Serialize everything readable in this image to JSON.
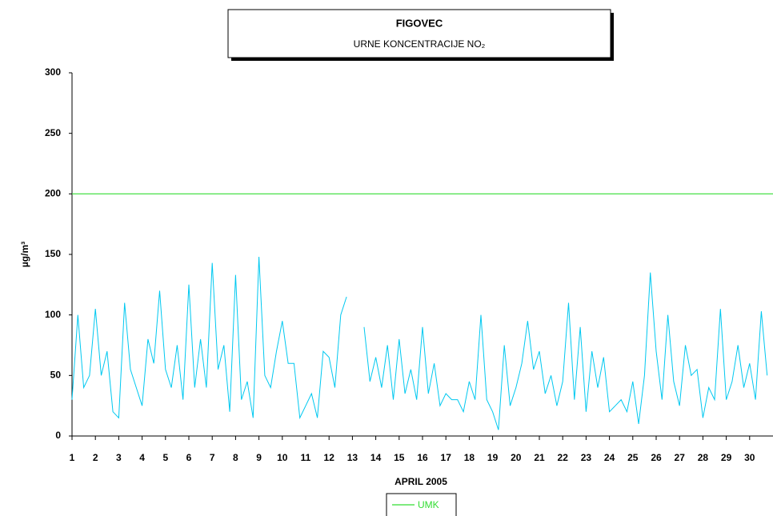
{
  "chart_data": {
    "type": "line",
    "title": "FIGOVEC",
    "subtitle": "URNE KONCENTRACIJE NO₂",
    "y_label": "µg/m³",
    "x_label": "APRIL 2005",
    "xlim": [
      1,
      31
    ],
    "xticks": [
      1,
      2,
      3,
      4,
      5,
      6,
      7,
      8,
      9,
      10,
      11,
      12,
      13,
      14,
      15,
      16,
      17,
      18,
      19,
      20,
      21,
      22,
      23,
      24,
      25,
      26,
      27,
      28,
      29,
      30
    ],
    "ylim": [
      0,
      300
    ],
    "yticks": [
      0,
      50,
      100,
      150,
      200,
      250,
      300
    ],
    "series": [
      {
        "color": "#00c8f0",
        "x": [
          1,
          1.25,
          1.5,
          1.75,
          2,
          2.25,
          2.5,
          2.75,
          3,
          3.25,
          3.5,
          3.75,
          4,
          4.25,
          4.5,
          4.75,
          5,
          5.25,
          5.5,
          5.75,
          6,
          6.25,
          6.5,
          6.75,
          7,
          7.25,
          7.5,
          7.75,
          8,
          8.25,
          8.5,
          8.75,
          9,
          9.25,
          9.5,
          9.75,
          10,
          10.25,
          10.5,
          10.75,
          11,
          11.25,
          11.5,
          11.75,
          12,
          12.25,
          12.5,
          12.75,
          13,
          13.25,
          13.5,
          13.75,
          14,
          14.25,
          14.5,
          14.75,
          15,
          15.25,
          15.5,
          15.75,
          16,
          16.25,
          16.5,
          16.75,
          17,
          17.25,
          17.5,
          17.75,
          18,
          18.25,
          18.5,
          18.75,
          19,
          19.25,
          19.5,
          19.75,
          20,
          20.25,
          20.5,
          20.75,
          21,
          21.25,
          21.5,
          21.75,
          22,
          22.25,
          22.5,
          22.75,
          23,
          23.25,
          23.5,
          23.75,
          24,
          24.25,
          24.5,
          24.75,
          25,
          25.25,
          25.5,
          25.75,
          26,
          26.25,
          26.5,
          26.75,
          27,
          27.25,
          27.5,
          27.75,
          28,
          28.25,
          28.5,
          28.75,
          29,
          29.25,
          29.5,
          29.75,
          30,
          30.25,
          30.5,
          30.75
        ],
        "values": [
          30,
          100,
          40,
          50,
          105,
          50,
          70,
          20,
          15,
          110,
          55,
          40,
          25,
          80,
          60,
          120,
          55,
          40,
          75,
          30,
          125,
          40,
          80,
          40,
          143,
          55,
          75,
          20,
          133,
          30,
          45,
          15,
          148,
          50,
          40,
          70,
          95,
          60,
          60,
          15,
          25,
          35,
          15,
          70,
          65,
          40,
          100,
          115,
          null,
          null,
          90,
          45,
          65,
          40,
          75,
          30,
          80,
          35,
          55,
          30,
          90,
          35,
          60,
          25,
          35,
          30,
          30,
          20,
          45,
          30,
          100,
          30,
          20,
          5,
          75,
          25,
          40,
          60,
          95,
          55,
          70,
          35,
          50,
          25,
          45,
          110,
          30,
          90,
          20,
          70,
          40,
          65,
          20,
          25,
          30,
          20,
          45,
          10,
          50,
          135,
          70,
          30,
          100,
          45,
          25,
          75,
          50,
          55,
          15,
          40,
          30,
          105,
          30,
          45,
          75,
          40,
          60,
          30,
          103,
          50
        ]
      }
    ],
    "limit_line": {
      "name": "UMK",
      "value": 200,
      "color": "#33dd33"
    }
  }
}
